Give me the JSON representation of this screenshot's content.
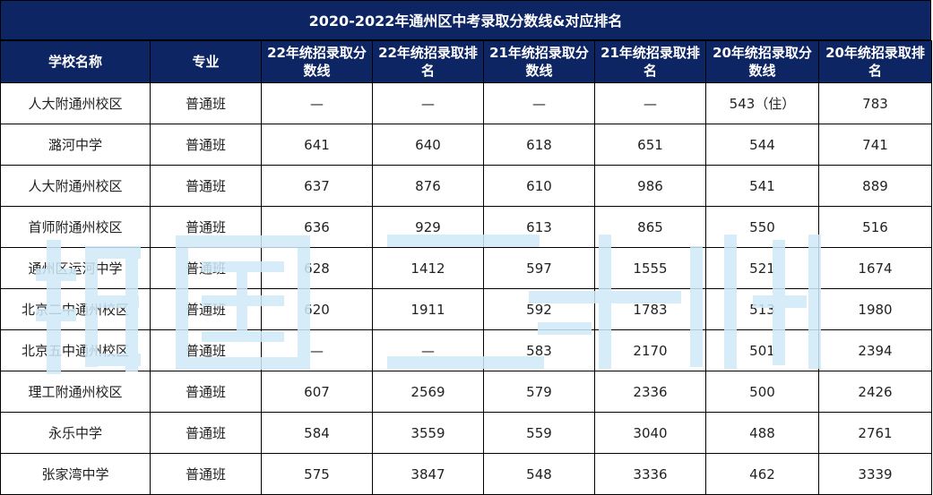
{
  "title": "2020-2022年通州区中考录取分数线&对应排名",
  "columns": [
    "学校名称",
    "专业",
    "22年统招录取分数线",
    "22年统招录取排名",
    "21年统招录取分数线",
    "21年统招录取排名",
    "20年统招录取分数线",
    "20年统招录取排名"
  ],
  "rows": [
    [
      "人大附通州校区",
      "普通班",
      "—",
      "—",
      "—",
      "—",
      "543（住）",
      "783"
    ],
    [
      "潞河中学",
      "普通班",
      "641",
      "640",
      "618",
      "651",
      "544",
      "741"
    ],
    [
      "人大附通州校区",
      "普通班",
      "637",
      "876",
      "610",
      "986",
      "541",
      "889"
    ],
    [
      "首师附通州校区",
      "普通班",
      "636",
      "929",
      "613",
      "865",
      "550",
      "516"
    ],
    [
      "通州区运河中学",
      "普通班",
      "628",
      "1412",
      "597",
      "1555",
      "521",
      "1674"
    ],
    [
      "北京二中通州校区",
      "普通班",
      "620",
      "1911",
      "592",
      "1783",
      "513",
      "1980"
    ],
    [
      "北京五中通州校区",
      "普通班",
      "—",
      "—",
      "583",
      "2170",
      "501",
      "2394"
    ],
    [
      "理工附通州校区",
      "普通班",
      "607",
      "2569",
      "579",
      "2336",
      "500",
      "2426"
    ],
    [
      "永乐中学",
      "普通班",
      "584",
      "3559",
      "559",
      "3040",
      "488",
      "2761"
    ],
    [
      "张家湾中学",
      "普通班",
      "575",
      "3847",
      "548",
      "3336",
      "462",
      "3339"
    ]
  ],
  "colors": {
    "header_bg": "#0e2563",
    "header_text": "#ffffff",
    "watermark": "#cfe9f8"
  }
}
